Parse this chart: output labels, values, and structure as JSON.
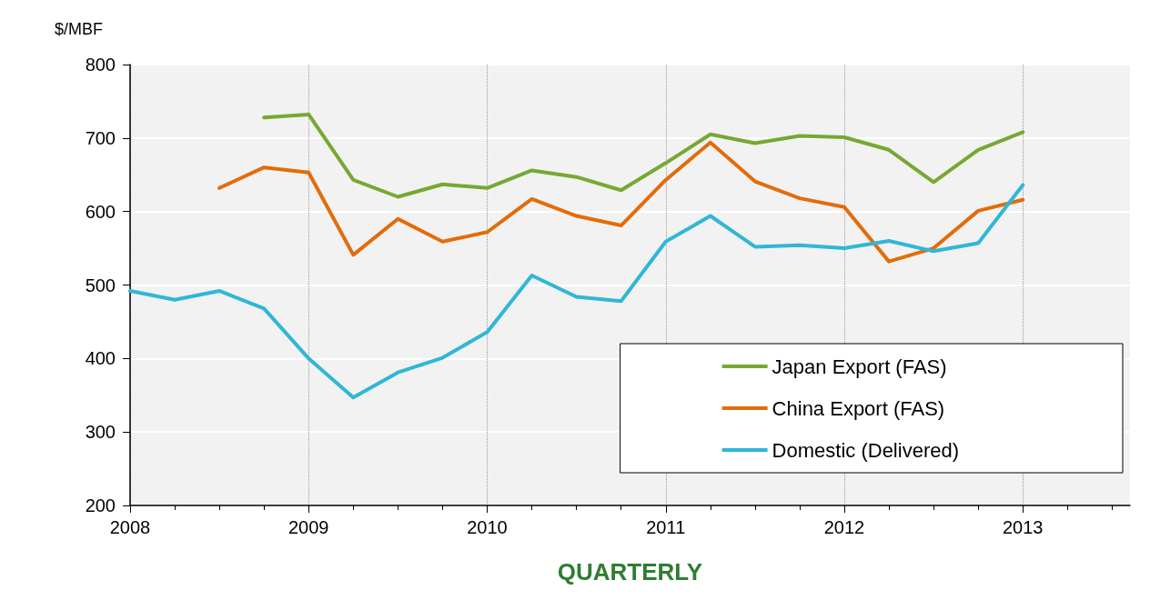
{
  "chart_data": {
    "type": "line",
    "ylabel": "$/MBF",
    "xlabel": "QUARTERLY",
    "x": [
      2008,
      2008.25,
      2008.5,
      2008.75,
      2009,
      2009.25,
      2009.5,
      2009.75,
      2010,
      2010.25,
      2010.5,
      2010.75,
      2011,
      2011.25,
      2011.5,
      2011.75,
      2012,
      2012.25,
      2012.5,
      2012.75,
      2013
    ],
    "series": [
      {
        "name": "Japan Export (FAS)",
        "color": "#77a832",
        "values": [
          null,
          null,
          null,
          728,
          732,
          643,
          620,
          637,
          632,
          656,
          647,
          629,
          666,
          705,
          693,
          703,
          701,
          684,
          640,
          684,
          708
        ]
      },
      {
        "name": "China Export (FAS)",
        "color": "#e36c0a",
        "values": [
          null,
          null,
          632,
          660,
          653,
          541,
          590,
          559,
          572,
          617,
          594,
          581,
          643,
          694,
          641,
          618,
          606,
          532,
          550,
          601,
          616
        ]
      },
      {
        "name": "Domestic (Delivered)",
        "color": "#31b6d6",
        "values": [
          492,
          480,
          492,
          468,
          400,
          347,
          381,
          401,
          436,
          513,
          484,
          478,
          559,
          594,
          552,
          554,
          550,
          560,
          546,
          557,
          636
        ]
      }
    ],
    "xlim": [
      2008,
      2013.6
    ],
    "xticks": [
      2008,
      2009,
      2010,
      2011,
      2012,
      2013
    ],
    "ylim": [
      200,
      800
    ],
    "yticks": [
      200,
      300,
      400,
      500,
      600,
      700,
      800
    ],
    "grid": true,
    "legend": "bottom right",
    "marker": "none",
    "line_style": "solid"
  }
}
